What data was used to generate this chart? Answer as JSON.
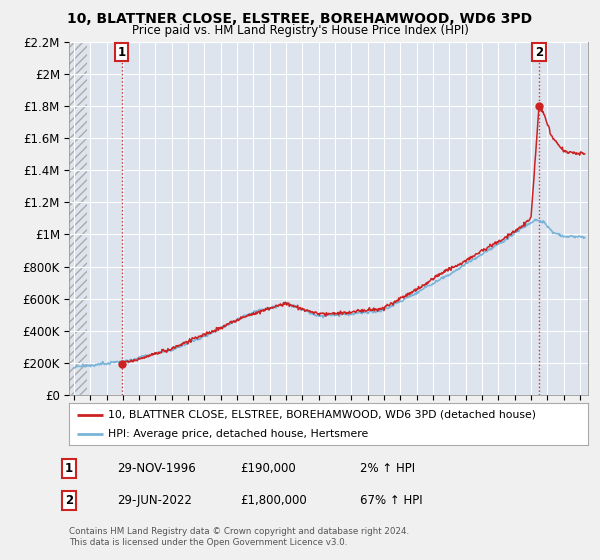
{
  "title": "10, BLATTNER CLOSE, ELSTREE, BOREHAMWOOD, WD6 3PD",
  "subtitle": "Price paid vs. HM Land Registry's House Price Index (HPI)",
  "legend_line1": "10, BLATTNER CLOSE, ELSTREE, BOREHAMWOOD, WD6 3PD (detached house)",
  "legend_line2": "HPI: Average price, detached house, Hertsmere",
  "point1_date": "29-NOV-1996",
  "point1_price": "£190,000",
  "point1_hpi": "2% ↑ HPI",
  "point2_date": "29-JUN-2022",
  "point2_price": "£1,800,000",
  "point2_hpi": "67% ↑ HPI",
  "footnote1": "Contains HM Land Registry data © Crown copyright and database right 2024.",
  "footnote2": "This data is licensed under the Open Government Licence v3.0.",
  "hpi_color": "#7ab4d8",
  "price_color": "#cc2222",
  "annotation_color": "#cc2222",
  "bg_color": "#dde4ee",
  "grid_color": "#ffffff",
  "fig_bg": "#f0f0f0",
  "ylim": [
    0,
    2200000
  ],
  "yticks": [
    0,
    200000,
    400000,
    600000,
    800000,
    1000000,
    1200000,
    1400000,
    1600000,
    1800000,
    2000000,
    2200000
  ],
  "xlim_start": 1993.7,
  "xlim_end": 2025.5,
  "point1_x": 1996.92,
  "point1_y": 190000,
  "point2_x": 2022.5,
  "point2_y": 1800000
}
